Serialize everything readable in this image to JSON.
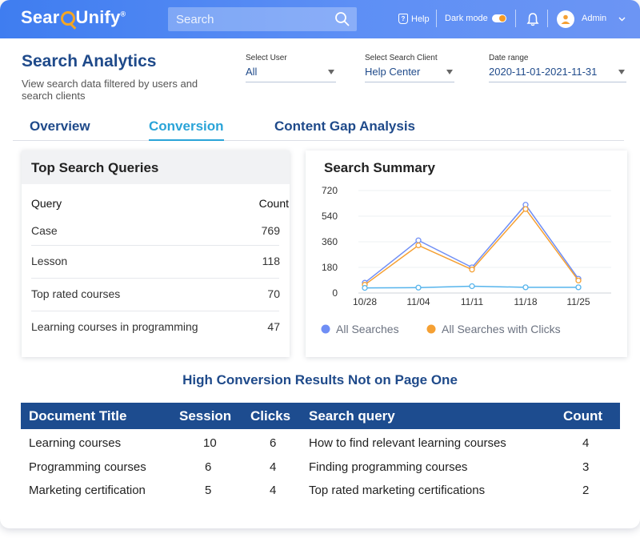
{
  "topbar": {
    "logo_text": "SearchUnify",
    "search_placeholder": "Search",
    "help_label": "Help",
    "dark_mode_label": "Dark mode",
    "user_label": "Admin"
  },
  "header": {
    "title": "Search Analytics",
    "subtitle": "View search data filtered by users and search clients"
  },
  "filters": {
    "user": {
      "label": "Select User",
      "value": "All"
    },
    "client": {
      "label": "Select Search Client",
      "value": "Help Center"
    },
    "date": {
      "label": "Date range",
      "value": "2020-11-01-2021-11-31"
    }
  },
  "tabs": [
    {
      "label": "Overview"
    },
    {
      "label": "Conversion"
    },
    {
      "label": "Content Gap Analysis"
    }
  ],
  "top_queries": {
    "title": "Top Search Queries",
    "col_query": "Query",
    "col_count": "Count",
    "rows": [
      {
        "query": "Case",
        "count": "769"
      },
      {
        "query": "Lesson",
        "count": "118"
      },
      {
        "query": "Top rated courses",
        "count": "70"
      },
      {
        "query": "Learning courses in programming",
        "count": "47"
      }
    ]
  },
  "chart_data": {
    "type": "line",
    "title": "Search Summary",
    "categories": [
      "10/28",
      "11/04",
      "11/11",
      "11/18",
      "11/25"
    ],
    "y_ticks": [
      "0",
      "180",
      "360",
      "540",
      "720"
    ],
    "ylim": [
      0,
      720
    ],
    "legend_position": "bottom",
    "series": [
      {
        "name": "All Searches",
        "color": "#6f8ef5",
        "values": [
          72,
          370,
          180,
          620,
          100
        ]
      },
      {
        "name": "All Searches with Clicks",
        "color": "#f5a033",
        "values": [
          58,
          335,
          165,
          590,
          88
        ]
      },
      {
        "name": "",
        "color": "#56b4ec",
        "values": [
          36,
          38,
          48,
          40,
          40
        ]
      }
    ]
  },
  "conversion": {
    "title": "High Conversion Results Not on Page One",
    "headers": {
      "title": "Document Title",
      "session": "Session",
      "clicks": "Clicks",
      "query": "Search query",
      "count": "Count"
    },
    "rows": [
      {
        "title": "Learning courses",
        "session": "10",
        "clicks": "6",
        "query": "How to find relevant learning courses",
        "count": "4"
      },
      {
        "title": "Programming courses",
        "session": "6",
        "clicks": "4",
        "query": "Finding programming courses",
        "count": "3"
      },
      {
        "title": "Marketing certification",
        "session": "5",
        "clicks": "4",
        "query": "Top rated marketing certifications",
        "count": "2"
      }
    ]
  },
  "colors": {
    "brand": "#1f4a8a",
    "accent": "#2aa4d8",
    "header_bg": "#1d4c8f"
  },
  "icons": {
    "search": "magnifier-icon",
    "help": "help-icon",
    "bell": "bell-icon",
    "avatar": "user-avatar-icon",
    "chevron": "chevron-down-icon"
  }
}
